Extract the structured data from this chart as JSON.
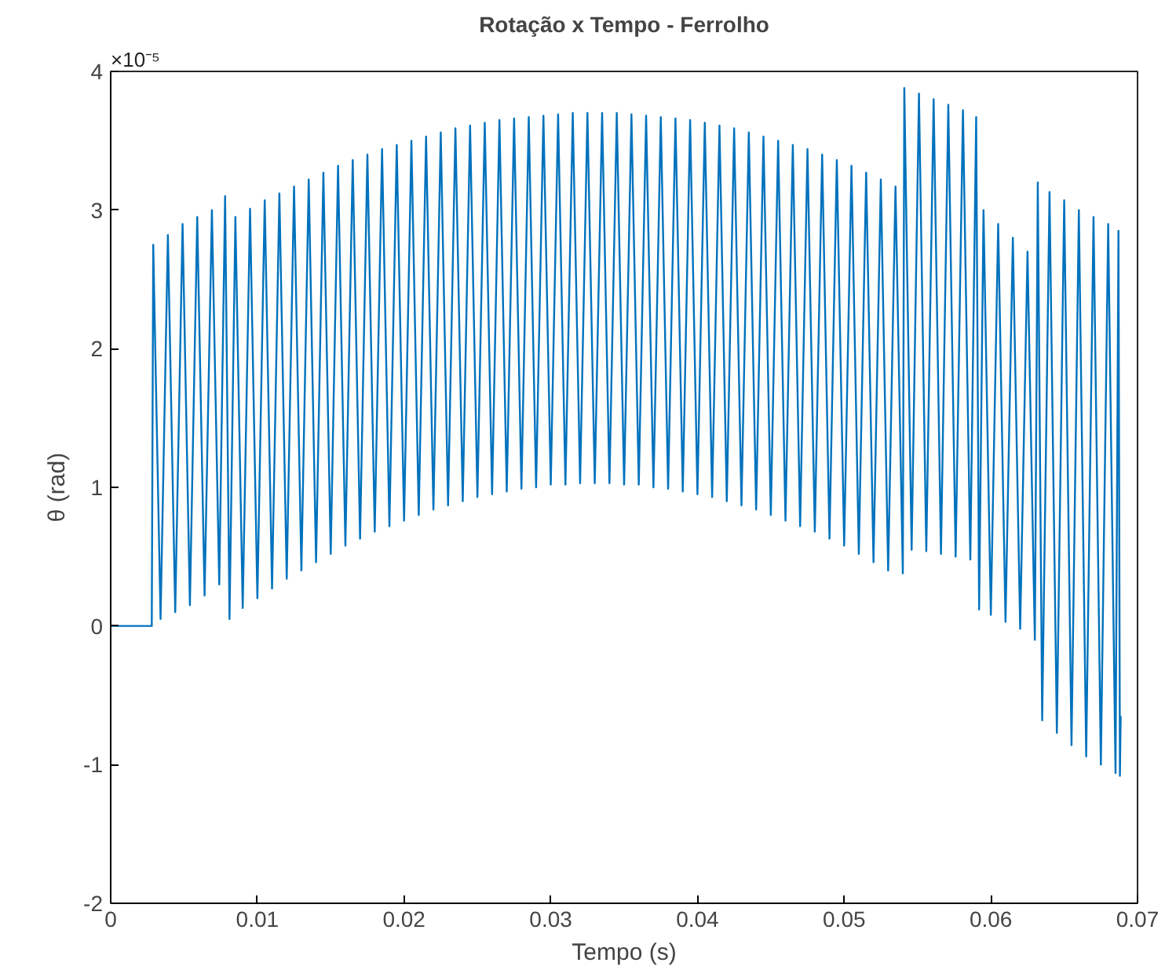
{
  "chart_data": {
    "type": "line",
    "title": "Rotação x Tempo - Ferrolho",
    "xlabel": "Tempo (s)",
    "ylabel": "θ (rad)",
    "annotations": [
      "×10⁻⁵"
    ],
    "xlim": [
      0,
      0.07
    ],
    "xticks": [
      0,
      0.01,
      0.02,
      0.03,
      0.04,
      0.05,
      0.06,
      0.07
    ],
    "ylim": [
      -2,
      4
    ],
    "yticks": [
      -2,
      -1,
      0,
      1,
      2,
      3,
      4
    ],
    "grid": false,
    "marker": "none",
    "line_style": "solid",
    "series": [
      {
        "color": "#0072bd",
        "x": [
          0,
          0.0028,
          0.0029,
          0.0034,
          0.0039,
          0.0044,
          0.0049,
          0.0054,
          0.0059,
          0.0064,
          0.0069,
          0.0074,
          0.0078,
          0.0081,
          0.0085,
          0.009,
          0.0095,
          0.01,
          0.0105,
          0.011,
          0.0115,
          0.012,
          0.0125,
          0.013,
          0.0135,
          0.014,
          0.0145,
          0.015,
          0.0155,
          0.016,
          0.0165,
          0.017,
          0.0175,
          0.018,
          0.0185,
          0.019,
          0.0195,
          0.02,
          0.0205,
          0.021,
          0.0215,
          0.022,
          0.0225,
          0.023,
          0.0235,
          0.024,
          0.0245,
          0.025,
          0.0255,
          0.026,
          0.0265,
          0.027,
          0.0275,
          0.028,
          0.0285,
          0.029,
          0.0295,
          0.03,
          0.0305,
          0.031,
          0.0315,
          0.032,
          0.0325,
          0.033,
          0.0335,
          0.034,
          0.0345,
          0.035,
          0.0355,
          0.036,
          0.0365,
          0.037,
          0.0375,
          0.038,
          0.0385,
          0.039,
          0.0395,
          0.04,
          0.0405,
          0.041,
          0.0415,
          0.042,
          0.0425,
          0.043,
          0.0435,
          0.044,
          0.0445,
          0.045,
          0.0455,
          0.046,
          0.0465,
          0.047,
          0.0475,
          0.048,
          0.0485,
          0.049,
          0.0495,
          0.05,
          0.0505,
          0.051,
          0.0515,
          0.052,
          0.0525,
          0.053,
          0.0535,
          0.054,
          0.0541,
          0.0546,
          0.0551,
          0.0556,
          0.0561,
          0.0566,
          0.0571,
          0.0576,
          0.0581,
          0.0586,
          0.059,
          0.0592,
          0.0595,
          0.06,
          0.0605,
          0.061,
          0.0615,
          0.062,
          0.0625,
          0.063,
          0.0632,
          0.0635,
          0.064,
          0.0645,
          0.065,
          0.0655,
          0.066,
          0.0665,
          0.067,
          0.0675,
          0.068,
          0.0685,
          0.0687,
          0.0688,
          0.06885
        ],
        "values": [
          0,
          0,
          2.75,
          0.05,
          2.82,
          0.1,
          2.9,
          0.15,
          2.95,
          0.22,
          3.0,
          0.3,
          3.1,
          0.05,
          2.95,
          0.13,
          3.01,
          0.2,
          3.07,
          0.27,
          3.12,
          0.34,
          3.17,
          0.4,
          3.22,
          0.46,
          3.27,
          0.52,
          3.32,
          0.58,
          3.36,
          0.63,
          3.4,
          0.68,
          3.44,
          0.72,
          3.47,
          0.76,
          3.5,
          0.8,
          3.53,
          0.84,
          3.56,
          0.87,
          3.59,
          0.9,
          3.61,
          0.93,
          3.63,
          0.95,
          3.65,
          0.97,
          3.66,
          0.99,
          3.67,
          1.0,
          3.68,
          1.02,
          3.69,
          1.02,
          3.7,
          1.03,
          3.7,
          1.03,
          3.7,
          1.03,
          3.7,
          1.02,
          3.69,
          1.02,
          3.68,
          1.0,
          3.67,
          0.99,
          3.66,
          0.97,
          3.65,
          0.95,
          3.63,
          0.93,
          3.61,
          0.9,
          3.59,
          0.87,
          3.56,
          0.84,
          3.53,
          0.8,
          3.5,
          0.76,
          3.47,
          0.72,
          3.44,
          0.68,
          3.4,
          0.63,
          3.36,
          0.58,
          3.32,
          0.52,
          3.27,
          0.46,
          3.22,
          0.4,
          3.17,
          0.38,
          3.88,
          0.55,
          3.84,
          0.54,
          3.8,
          0.52,
          3.76,
          0.5,
          3.72,
          0.48,
          3.67,
          0.12,
          3.0,
          0.08,
          2.9,
          0.03,
          2.8,
          -0.02,
          2.7,
          -0.1,
          3.2,
          -0.68,
          3.13,
          -0.77,
          3.07,
          -0.86,
          3.0,
          -0.94,
          2.95,
          -1.0,
          2.9,
          -1.06,
          2.85,
          -1.08,
          -0.65
        ]
      }
    ]
  }
}
